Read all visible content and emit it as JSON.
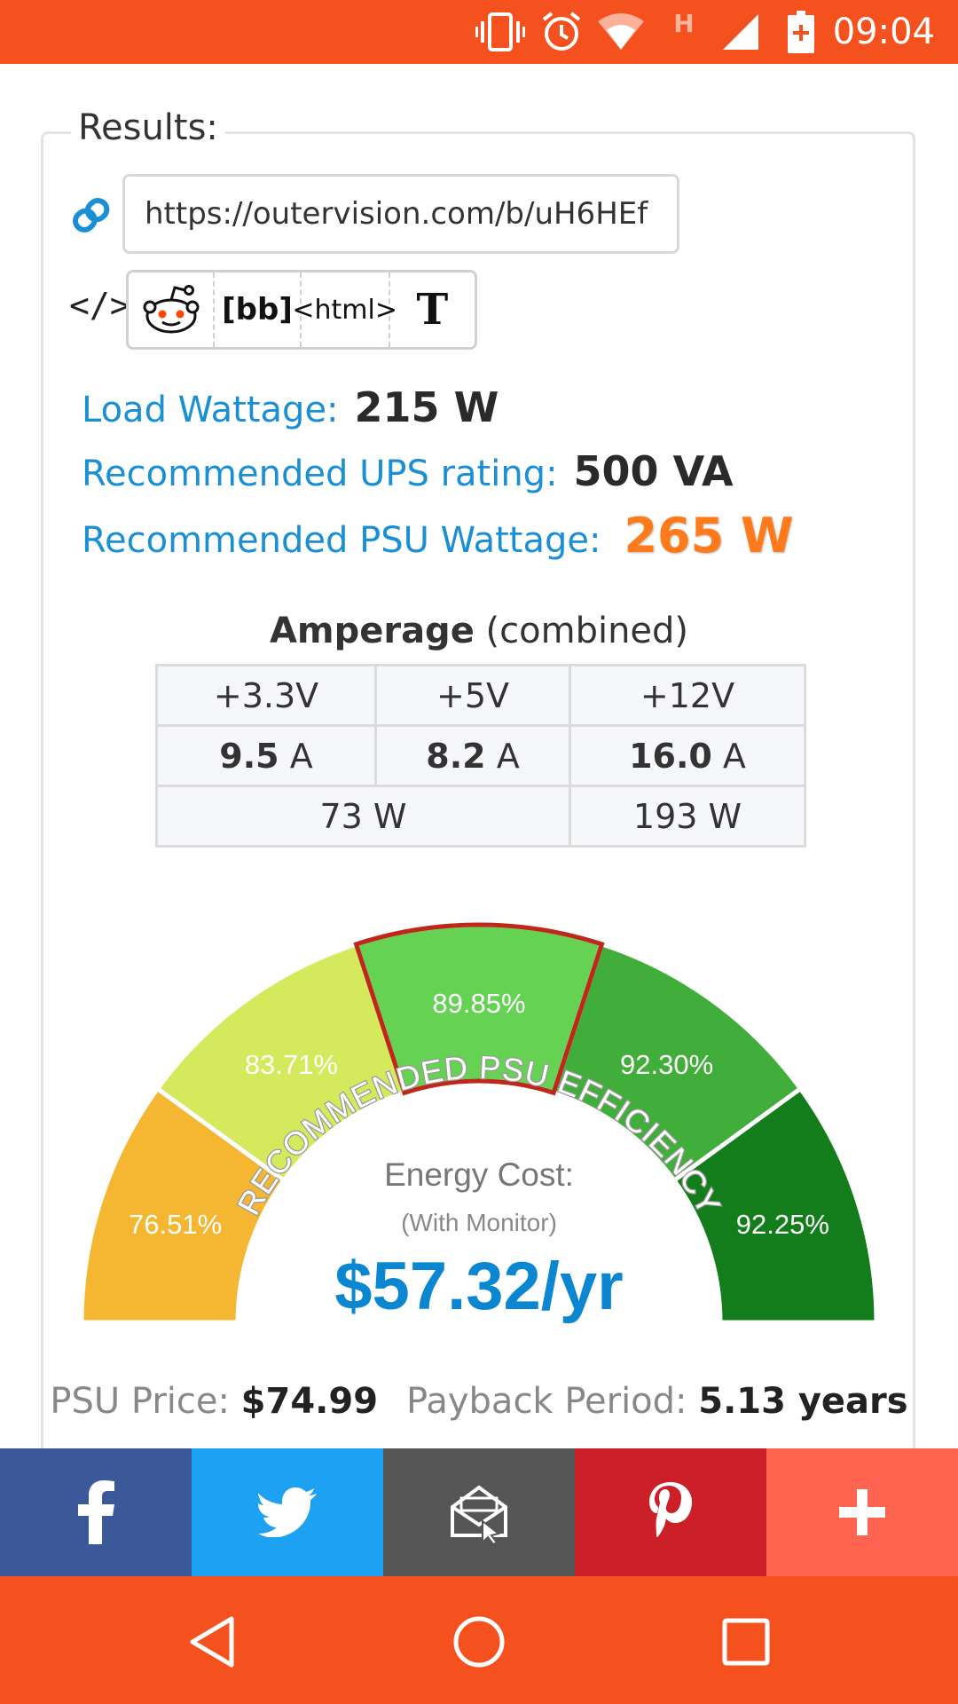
{
  "status_bar": {
    "time": "09:04",
    "icons": [
      "vibrate-icon",
      "alarm-icon",
      "wifi-icon",
      "h-signal-icon",
      "cell-signal-icon",
      "battery-icon"
    ],
    "network_label": "H",
    "background": "#f4511e"
  },
  "results": {
    "legend": "Results:",
    "url": "https://outervision.com/b/uH6HEf",
    "share_formats": [
      "reddit",
      "[bb]",
      "<html>",
      "T"
    ],
    "load_wattage_label": "Load Wattage:",
    "load_wattage_value": "215 W",
    "ups_label": "Recommended UPS rating:",
    "ups_value": "500 VA",
    "psu_label": "Recommended PSU Wattage:",
    "psu_value": "265 W"
  },
  "amperage": {
    "title_bold": "Amperage",
    "title_rest": " (combined)",
    "headers": [
      "+3.3V",
      "+5V",
      "+12V"
    ],
    "values": [
      "9.5",
      "8.2",
      "16.0"
    ],
    "unit": " A",
    "watts": [
      "73 W",
      "193 W"
    ]
  },
  "gauge": {
    "title": "RECOMMENDED PSU EFFICIENCY",
    "segments": [
      {
        "label": "76.51%",
        "color": "#f5b731"
      },
      {
        "label": "83.71%",
        "color": "#d4e95c"
      },
      {
        "label": "89.85%",
        "color": "#66d254",
        "selected": true
      },
      {
        "label": "92.30%",
        "color": "#41ad3a"
      },
      {
        "label": "92.25%",
        "color": "#147d1b"
      }
    ],
    "energy_label": "Energy Cost:",
    "energy_sub": "(With Monitor)",
    "energy_value": "$57.32/yr",
    "highlight_color": "#c0271b",
    "accent_color": "#0b86d0"
  },
  "payback": {
    "price_label": "PSU Price: ",
    "price_value": "$74.99",
    "period_label": "Payback Period: ",
    "period_value": "5.13 years"
  },
  "social": [
    {
      "name": "facebook-icon",
      "color": "#3b5998"
    },
    {
      "name": "twitter-icon",
      "color": "#1da1f2"
    },
    {
      "name": "email-icon",
      "color": "#555555"
    },
    {
      "name": "pinterest-icon",
      "color": "#cb2027"
    },
    {
      "name": "plus-icon",
      "color": "#ff6550"
    }
  ],
  "nav_bar": {
    "buttons": [
      "back-icon",
      "home-icon",
      "recents-icon"
    ]
  }
}
